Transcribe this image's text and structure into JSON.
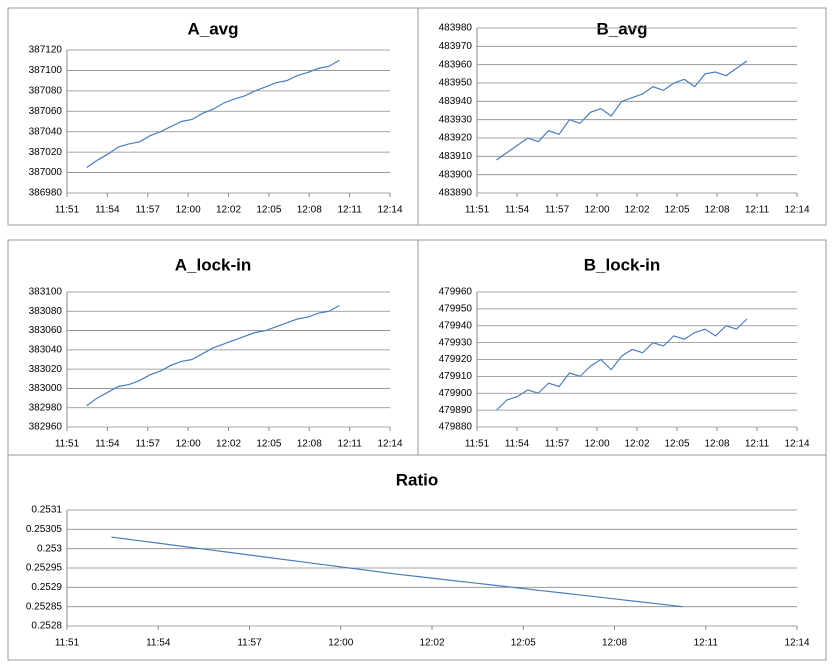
{
  "chart_data": [
    {
      "type": "line",
      "title": "A_avg",
      "color": "#4a7ebb",
      "grid": true,
      "x": [
        712.4,
        713.15,
        713.9,
        714.65,
        715.4,
        716.15,
        716.9,
        717.65,
        718.4,
        719.15,
        719.9,
        720.65,
        721.4,
        722.15,
        722.9,
        723.65,
        724.4,
        725.15,
        725.9,
        726.65,
        727.4,
        728.15,
        728.9,
        729.65,
        730.4
      ],
      "values": [
        387005,
        387012,
        387018,
        387025,
        387028,
        387030,
        387036,
        387040,
        387045,
        387050,
        387052,
        387058,
        387062,
        387068,
        387072,
        387075,
        387080,
        387084,
        387088,
        387090,
        387095,
        387098,
        387102,
        387104,
        387110
      ],
      "xlim": [
        711,
        734
      ],
      "xticks": [
        {
          "value": 711,
          "label": "11:51"
        },
        {
          "value": 713.875,
          "label": "11:54"
        },
        {
          "value": 716.75,
          "label": "11:57"
        },
        {
          "value": 719.625,
          "label": "12:00"
        },
        {
          "value": 722.5,
          "label": "12:02"
        },
        {
          "value": 725.375,
          "label": "12:05"
        },
        {
          "value": 728.25,
          "label": "12:08"
        },
        {
          "value": 731.125,
          "label": "12:11"
        },
        {
          "value": 734,
          "label": "12:14"
        }
      ],
      "ylim": [
        386980,
        387120
      ],
      "yticks": [
        386980,
        387000,
        387020,
        387040,
        387060,
        387080,
        387100,
        387120
      ]
    },
    {
      "type": "line",
      "title": "B_avg",
      "color": "#4a7ebb",
      "grid": true,
      "x": [
        712.4,
        713.15,
        713.9,
        714.65,
        715.4,
        716.15,
        716.9,
        717.65,
        718.4,
        719.15,
        719.9,
        720.65,
        721.4,
        722.15,
        722.9,
        723.65,
        724.4,
        725.15,
        725.9,
        726.65,
        727.4,
        728.15,
        728.9,
        729.65,
        730.4
      ],
      "values": [
        483908,
        483912,
        483916,
        483920,
        483918,
        483924,
        483922,
        483930,
        483928,
        483934,
        483936,
        483932,
        483940,
        483942,
        483944,
        483948,
        483946,
        483950,
        483952,
        483948,
        483955,
        483956,
        483954,
        483958,
        483962
      ],
      "xlim": [
        711,
        734
      ],
      "xticks": [
        {
          "value": 711,
          "label": "11:51"
        },
        {
          "value": 713.875,
          "label": "11:54"
        },
        {
          "value": 716.75,
          "label": "11:57"
        },
        {
          "value": 719.625,
          "label": "12:00"
        },
        {
          "value": 722.5,
          "label": "12:02"
        },
        {
          "value": 725.375,
          "label": "12:05"
        },
        {
          "value": 728.25,
          "label": "12:08"
        },
        {
          "value": 731.125,
          "label": "12:11"
        },
        {
          "value": 734,
          "label": "12:14"
        }
      ],
      "ylim": [
        483890,
        483980
      ],
      "yticks": [
        483890,
        483900,
        483910,
        483920,
        483930,
        483940,
        483950,
        483960,
        483970,
        483980
      ]
    },
    {
      "type": "line",
      "title": "A_lock-in",
      "color": "#4a7ebb",
      "grid": true,
      "x": [
        712.4,
        713.15,
        713.9,
        714.65,
        715.4,
        716.15,
        716.9,
        717.65,
        718.4,
        719.15,
        719.9,
        720.65,
        721.4,
        722.15,
        722.9,
        723.65,
        724.4,
        725.15,
        725.9,
        726.65,
        727.4,
        728.15,
        728.9,
        729.65,
        730.4
      ],
      "values": [
        382982,
        382990,
        382996,
        383002,
        383004,
        383008,
        383014,
        383018,
        383024,
        383028,
        383030,
        383036,
        383042,
        383046,
        383050,
        383054,
        383058,
        383060,
        383064,
        383068,
        383072,
        383074,
        383078,
        383080,
        383086
      ],
      "xlim": [
        711,
        734
      ],
      "xticks": [
        {
          "value": 711,
          "label": "11:51"
        },
        {
          "value": 713.875,
          "label": "11:54"
        },
        {
          "value": 716.75,
          "label": "11:57"
        },
        {
          "value": 719.625,
          "label": "12:00"
        },
        {
          "value": 722.5,
          "label": "12:02"
        },
        {
          "value": 725.375,
          "label": "12:05"
        },
        {
          "value": 728.25,
          "label": "12:08"
        },
        {
          "value": 731.125,
          "label": "12:11"
        },
        {
          "value": 734,
          "label": "12:14"
        }
      ],
      "ylim": [
        382960,
        383100
      ],
      "yticks": [
        382960,
        382980,
        383000,
        383020,
        383040,
        383060,
        383080,
        383100
      ]
    },
    {
      "type": "line",
      "title": "B_lock-in",
      "color": "#4a7ebb",
      "grid": true,
      "x": [
        712.4,
        713.15,
        713.9,
        714.65,
        715.4,
        716.15,
        716.9,
        717.65,
        718.4,
        719.15,
        719.9,
        720.65,
        721.4,
        722.15,
        722.9,
        723.65,
        724.4,
        725.15,
        725.9,
        726.65,
        727.4,
        728.15,
        728.9,
        729.65,
        730.4
      ],
      "values": [
        479890,
        479896,
        479898,
        479902,
        479900,
        479906,
        479904,
        479912,
        479910,
        479916,
        479920,
        479914,
        479922,
        479926,
        479924,
        479930,
        479928,
        479934,
        479932,
        479936,
        479938,
        479934,
        479940,
        479938,
        479944
      ],
      "xlim": [
        711,
        734
      ],
      "xticks": [
        {
          "value": 711,
          "label": "11:51"
        },
        {
          "value": 713.875,
          "label": "11:54"
        },
        {
          "value": 716.75,
          "label": "11:57"
        },
        {
          "value": 719.625,
          "label": "12:00"
        },
        {
          "value": 722.5,
          "label": "12:02"
        },
        {
          "value": 725.375,
          "label": "12:05"
        },
        {
          "value": 728.25,
          "label": "12:08"
        },
        {
          "value": 731.125,
          "label": "12:11"
        },
        {
          "value": 734,
          "label": "12:14"
        }
      ],
      "ylim": [
        479880,
        479960
      ],
      "yticks": [
        479880,
        479890,
        479900,
        479910,
        479920,
        479930,
        479940,
        479950,
        479960
      ]
    },
    {
      "type": "line",
      "title": "Ratio",
      "color": "#4a7ebb",
      "grid": true,
      "x": [
        712.4,
        713.15,
        713.9,
        714.65,
        715.4,
        716.15,
        716.9,
        717.65,
        718.4,
        719.15,
        719.9,
        720.65,
        721.4,
        722.15,
        722.9,
        723.65,
        724.4,
        725.15,
        725.9,
        726.65,
        727.4,
        728.15,
        728.9,
        729.65,
        730.4
      ],
      "values": [
        0.25303,
        0.253022,
        0.253014,
        0.253006,
        0.252998,
        0.25299,
        0.252982,
        0.252974,
        0.252966,
        0.252958,
        0.25295,
        0.252942,
        0.252934,
        0.252927,
        0.25292,
        0.252913,
        0.252906,
        0.252899,
        0.252892,
        0.252885,
        0.252878,
        0.252871,
        0.252864,
        0.252857,
        0.25285
      ],
      "xlim": [
        711,
        734
      ],
      "xticks": [
        {
          "value": 711,
          "label": "11:51"
        },
        {
          "value": 713.875,
          "label": "11:54"
        },
        {
          "value": 716.75,
          "label": "11:57"
        },
        {
          "value": 719.625,
          "label": "12:00"
        },
        {
          "value": 722.5,
          "label": "12:02"
        },
        {
          "value": 725.375,
          "label": "12:05"
        },
        {
          "value": 728.25,
          "label": "12:08"
        },
        {
          "value": 731.125,
          "label": "12:11"
        },
        {
          "value": 734,
          "label": "12:14"
        }
      ],
      "ylim": [
        0.2528,
        0.2531
      ],
      "yticks": [
        0.2528,
        0.25285,
        0.2529,
        0.25295,
        0.253,
        0.25305,
        0.2531
      ]
    }
  ]
}
